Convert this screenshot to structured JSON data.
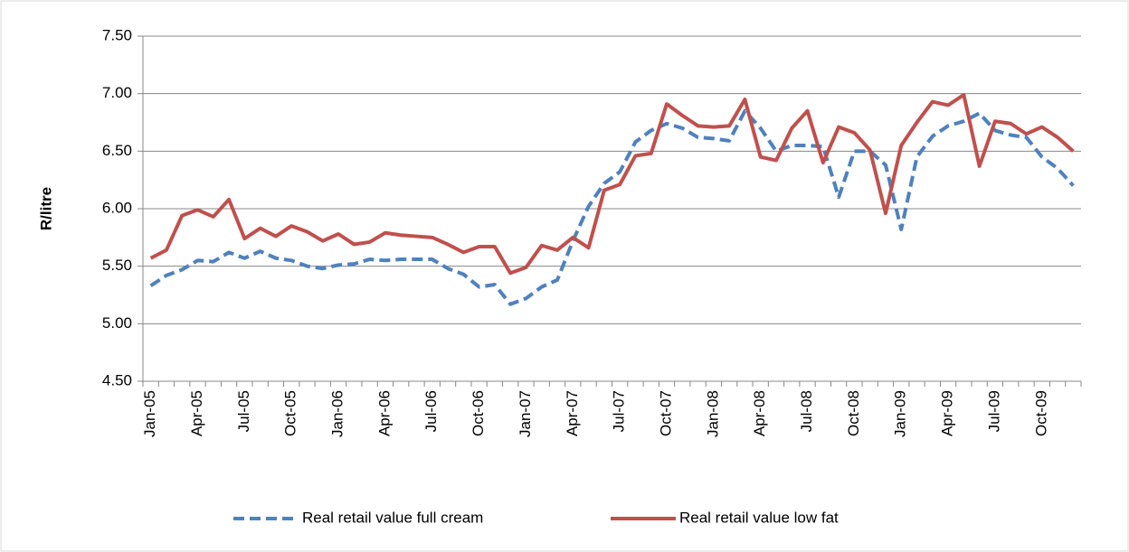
{
  "chart_data": {
    "type": "line",
    "y_label": "R/litre",
    "categories": [
      "Jan-05",
      null,
      null,
      "Apr-05",
      null,
      null,
      "Jul-05",
      null,
      null,
      "Oct-05",
      null,
      null,
      "Jan-06",
      null,
      null,
      "Apr-06",
      null,
      null,
      "Jul-06",
      null,
      null,
      "Oct-06",
      null,
      null,
      "Jan-07",
      null,
      null,
      "Apr-07",
      null,
      null,
      "Jul-07",
      null,
      null,
      "Oct-07",
      null,
      null,
      "Jan-08",
      null,
      null,
      "Apr-08",
      null,
      null,
      "Jul-08",
      null,
      null,
      "Oct-08",
      null,
      null,
      "Jan-09",
      null,
      null,
      "Apr-09",
      null,
      null,
      "Jul-09",
      null,
      null,
      "Oct-09",
      null,
      null
    ],
    "series": [
      {
        "name": "Real retail value full cream",
        "color": "#4f81bd",
        "dashed": true,
        "values": [
          5.33,
          5.42,
          5.47,
          5.55,
          5.54,
          5.62,
          5.57,
          5.63,
          5.57,
          5.55,
          5.5,
          5.48,
          5.51,
          5.52,
          5.56,
          5.55,
          5.56,
          5.56,
          5.56,
          5.48,
          5.43,
          5.32,
          5.34,
          5.17,
          5.22,
          5.32,
          5.38,
          5.72,
          6.02,
          6.22,
          6.32,
          6.58,
          6.68,
          6.74,
          6.7,
          6.62,
          6.61,
          6.59,
          6.85,
          6.7,
          6.5,
          6.55,
          6.55,
          6.54,
          6.1,
          6.5,
          6.5,
          6.38,
          5.82,
          6.45,
          6.63,
          6.72,
          6.76,
          6.83,
          6.68,
          6.64,
          6.62,
          6.45,
          6.35,
          6.2
        ]
      },
      {
        "name": "Real retail value low fat",
        "color": "#c0504d",
        "dashed": false,
        "values": [
          5.57,
          5.64,
          5.94,
          5.99,
          5.93,
          6.08,
          5.74,
          5.83,
          5.76,
          5.85,
          5.8,
          5.72,
          5.78,
          5.69,
          5.71,
          5.79,
          5.77,
          5.76,
          5.75,
          5.69,
          5.62,
          5.67,
          5.67,
          5.44,
          5.49,
          5.68,
          5.64,
          5.75,
          5.66,
          6.16,
          6.21,
          6.46,
          6.48,
          6.91,
          6.81,
          6.72,
          6.71,
          6.72,
          6.95,
          6.45,
          6.42,
          6.7,
          6.85,
          6.4,
          6.71,
          6.66,
          6.51,
          5.96,
          6.55,
          6.75,
          6.93,
          6.9,
          6.99,
          6.37,
          6.76,
          6.74,
          6.65,
          6.71,
          6.62,
          6.5
        ]
      }
    ],
    "ylim": [
      4.5,
      7.5
    ],
    "yticks": [
      {
        "value": 4.5,
        "label": "4.50"
      },
      {
        "value": 5,
        "label": "5.00"
      },
      {
        "value": 5.5,
        "label": "5.50"
      },
      {
        "value": 6,
        "label": "6.00"
      },
      {
        "value": 6.5,
        "label": "6.50"
      },
      {
        "value": 7,
        "label": "7.00"
      },
      {
        "value": 7.5,
        "label": "7.50"
      }
    ],
    "grid": true,
    "legend": "bottom"
  }
}
